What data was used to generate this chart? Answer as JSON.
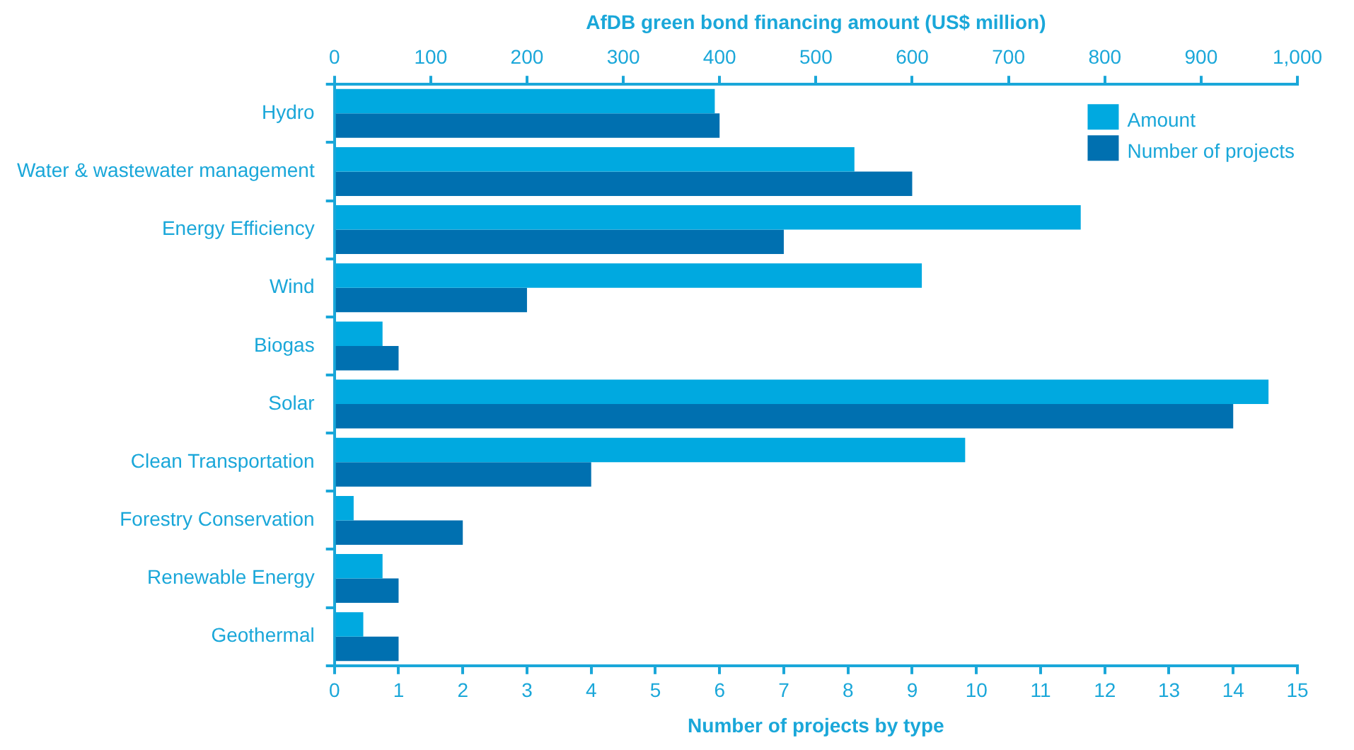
{
  "chart_data": {
    "type": "bar",
    "orientation": "horizontal",
    "categories": [
      "Hydro",
      "Water & wastewater management",
      "Energy Efficiency",
      "Wind",
      "Biogas",
      "Solar",
      "Clean Transportation",
      "Forestry Conservation",
      "Renewable Energy",
      "Geothermal"
    ],
    "series": [
      {
        "name": "Amount",
        "color": "#00a9e0",
        "axis": "x2",
        "values": [
          395,
          540,
          775,
          610,
          50,
          970,
          655,
          20,
          50,
          30
        ]
      },
      {
        "name": "Number of projects",
        "color": "#0070b0",
        "values": [
          6,
          9,
          7,
          3,
          1,
          14,
          4,
          2,
          1,
          1
        ]
      }
    ],
    "xlabel": "Number of projects by type",
    "x2label": "AfDB green bond financing amount (US$ million)",
    "xlim": [
      0,
      15
    ],
    "xticks": [
      0,
      1,
      2,
      3,
      4,
      5,
      6,
      7,
      8,
      9,
      10,
      11,
      12,
      13,
      14,
      15
    ],
    "x2lim": [
      0,
      1000
    ],
    "x2ticks": [
      0,
      100,
      200,
      300,
      400,
      500,
      600,
      700,
      800,
      900,
      {
        "value": 1000,
        "label": "1,000"
      }
    ],
    "legend": "top right",
    "grid": false
  }
}
